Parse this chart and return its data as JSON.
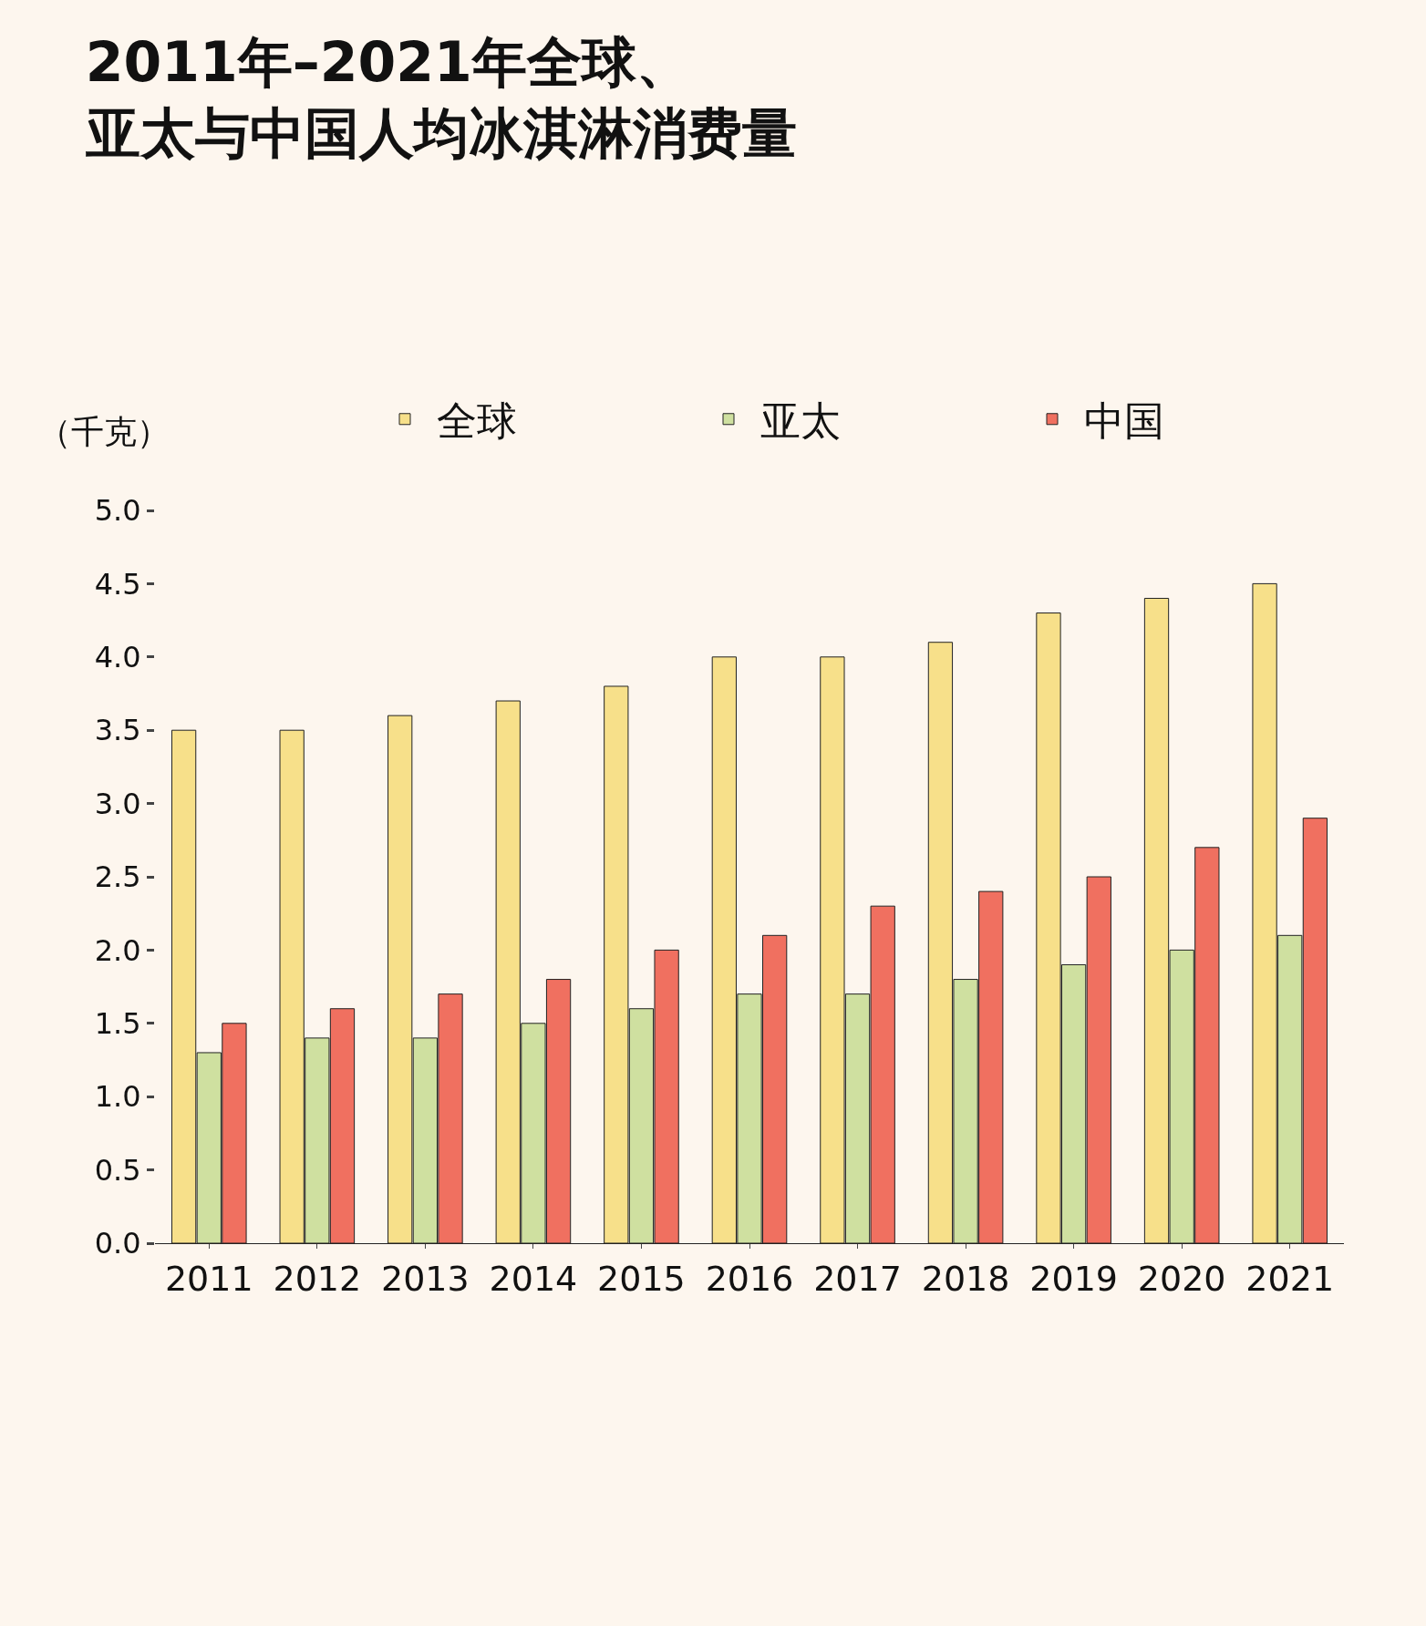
{
  "chart_data": {
    "type": "bar",
    "title": "2011年–2021年全球、亚太与中国人均冰淇淋消费量",
    "ylabel": "（千克）",
    "categories": [
      "2011",
      "2012",
      "2013",
      "2014",
      "2015",
      "2016",
      "2017",
      "2018",
      "2019",
      "2020",
      "2021"
    ],
    "series": [
      {
        "name": "全球",
        "color": "#f7e08a",
        "values": [
          3.5,
          3.5,
          3.6,
          3.7,
          3.8,
          4.0,
          4.0,
          4.1,
          4.3,
          4.4,
          4.5
        ]
      },
      {
        "name": "亚太",
        "color": "#cfe0a0",
        "values": [
          1.3,
          1.4,
          1.4,
          1.5,
          1.6,
          1.7,
          1.7,
          1.8,
          1.9,
          2.0,
          2.1
        ]
      },
      {
        "name": "中国",
        "color": "#f07060",
        "values": [
          1.5,
          1.6,
          1.7,
          1.8,
          2.0,
          2.1,
          2.3,
          2.4,
          2.5,
          2.7,
          2.9
        ]
      }
    ],
    "ylim": [
      0,
      5
    ],
    "yticks": [
      {
        "value": 0,
        "label": "0.0"
      },
      {
        "value": 0.5,
        "label": "0.5"
      },
      {
        "value": 1,
        "label": "1.0"
      },
      {
        "value": 1.5,
        "label": "1.5"
      },
      {
        "value": 2,
        "label": "2.0"
      },
      {
        "value": 2.5,
        "label": "2.5"
      },
      {
        "value": 3,
        "label": "3.0"
      },
      {
        "value": 3.5,
        "label": "3.5"
      },
      {
        "value": 4,
        "label": "4.0"
      },
      {
        "value": 4.5,
        "label": "4.5"
      },
      {
        "value": 5,
        "label": "5.0"
      }
    ],
    "grid": false,
    "legend": "top right"
  }
}
